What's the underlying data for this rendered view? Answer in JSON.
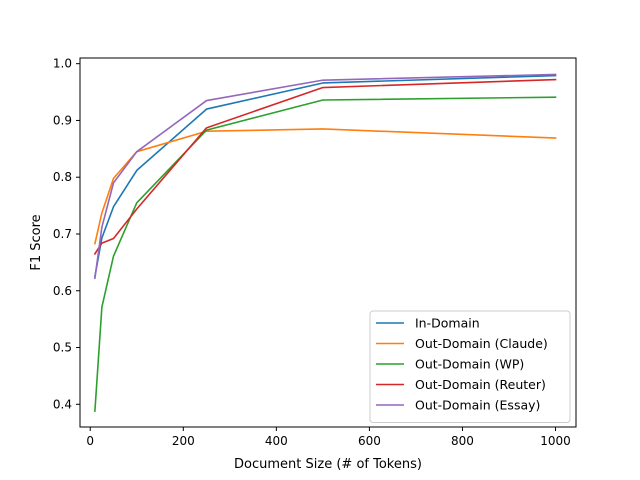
{
  "chart_data": {
    "type": "line",
    "title": "",
    "xlabel": "Document Size (# of Tokens)",
    "ylabel": "F1 Score",
    "xlim": [
      -22,
      1044
    ],
    "ylim": [
      0.36,
      1.01
    ],
    "xticks": [
      0,
      200,
      400,
      600,
      800,
      1000
    ],
    "yticks": [
      0.4,
      0.5,
      0.6,
      0.7,
      0.8,
      0.9,
      1.0
    ],
    "xtick_labels": [
      "0",
      "200",
      "400",
      "600",
      "800",
      "1000"
    ],
    "ytick_labels": [
      "0.4",
      "0.5",
      "0.6",
      "0.7",
      "0.8",
      "0.9",
      "1.0"
    ],
    "grid": false,
    "legend_position": "lower-right",
    "x": [
      10,
      25,
      50,
      100,
      250,
      500,
      1000
    ],
    "series": [
      {
        "name": "In-Domain",
        "color": "#1f77b4",
        "values": [
          0.625,
          0.693,
          0.748,
          0.812,
          0.92,
          0.966,
          0.979
        ]
      },
      {
        "name": "Out-Domain (Claude)",
        "color": "#ff7f0e",
        "values": [
          0.683,
          0.737,
          0.798,
          0.845,
          0.881,
          0.885,
          0.869
        ]
      },
      {
        "name": "Out-Domain (WP)",
        "color": "#2ca02c",
        "values": [
          0.388,
          0.571,
          0.661,
          0.755,
          0.883,
          0.936,
          0.941
        ]
      },
      {
        "name": "Out-Domain (Reuter)",
        "color": "#d62728",
        "values": [
          0.665,
          0.684,
          0.692,
          0.744,
          0.887,
          0.958,
          0.972
        ]
      },
      {
        "name": "Out-Domain (Essay)",
        "color": "#9467bd",
        "values": [
          0.622,
          0.712,
          0.79,
          0.845,
          0.935,
          0.971,
          0.981
        ]
      }
    ]
  }
}
